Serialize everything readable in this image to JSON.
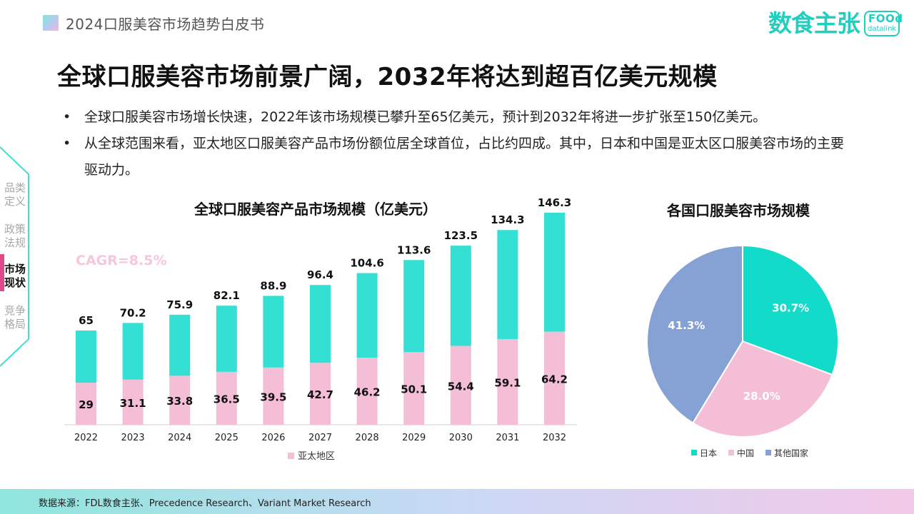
{
  "header": {
    "section_title": "2024口服美容市场趋势白皮书"
  },
  "logo": {
    "text": "数食主张",
    "badge_top": "FOOd",
    "badge_bottom": "datalink"
  },
  "main_title": "全球口服美容市场前景广阔，2032年将达到超百亿美元规模",
  "bullets": [
    "全球口服美容市场增长快速，2022年该市场规模已攀升至65亿美元，预计到2032年将进一步扩张至150亿美元。",
    "从全球范围来看，亚太地区口服美容产品市场份额位居全球首位，占比约四成。其中，日本和中国是亚太区口服美容市场的主要驱动力。"
  ],
  "bullet_symbol": "•",
  "sidenav": {
    "items": [
      {
        "line1": "品类",
        "line2": "定义",
        "active": false
      },
      {
        "line1": "政策",
        "line2": "法规",
        "active": false
      },
      {
        "line1": "市场",
        "line2": "现状",
        "active": true
      },
      {
        "line1": "竞争",
        "line2": "格局",
        "active": false
      }
    ],
    "accent": "#e14a8a"
  },
  "footer": {
    "source": "数据来源：FDL数食主张、Precedence Research、Variant Market Research"
  },
  "chart_data": [
    {
      "type": "bar",
      "stacked": true,
      "title": "全球口服美容产品市场规模（亿美元）",
      "annotation": "CAGR=8.5%",
      "categories": [
        "2022",
        "2023",
        "2024",
        "2025",
        "2026",
        "2027",
        "2028",
        "2029",
        "2030",
        "2031",
        "2032"
      ],
      "totals": [
        65,
        70.2,
        75.9,
        82.1,
        88.9,
        96.4,
        104.6,
        113.6,
        123.5,
        134.3,
        146.3
      ],
      "series": [
        {
          "name": "亚太地区",
          "color": "#f4bfd6",
          "values": [
            29,
            31.1,
            33.8,
            36.5,
            39.5,
            42.7,
            46.2,
            50.1,
            54.4,
            59.1,
            64.2
          ]
        },
        {
          "color": "#34e0d3",
          "values": [
            36,
            39.1,
            42.1,
            45.6,
            49.4,
            53.7,
            58.4,
            63.5,
            69.1,
            75.2,
            82.1
          ]
        }
      ],
      "ylim": [
        0,
        160
      ],
      "legend": "bottom"
    },
    {
      "type": "pie",
      "title": "各国口服美容市场规模",
      "slices": [
        {
          "label": "日本",
          "value": 30.7,
          "display": "30.7%",
          "color": "#12dbc9"
        },
        {
          "label": "中国",
          "value": 28.0,
          "display": "28.0%",
          "color": "#f4bfd6"
        },
        {
          "label": "其他国家",
          "value": 41.3,
          "display": "41.3%",
          "color": "#86a1d4"
        }
      ],
      "legend": "bottom"
    }
  ]
}
